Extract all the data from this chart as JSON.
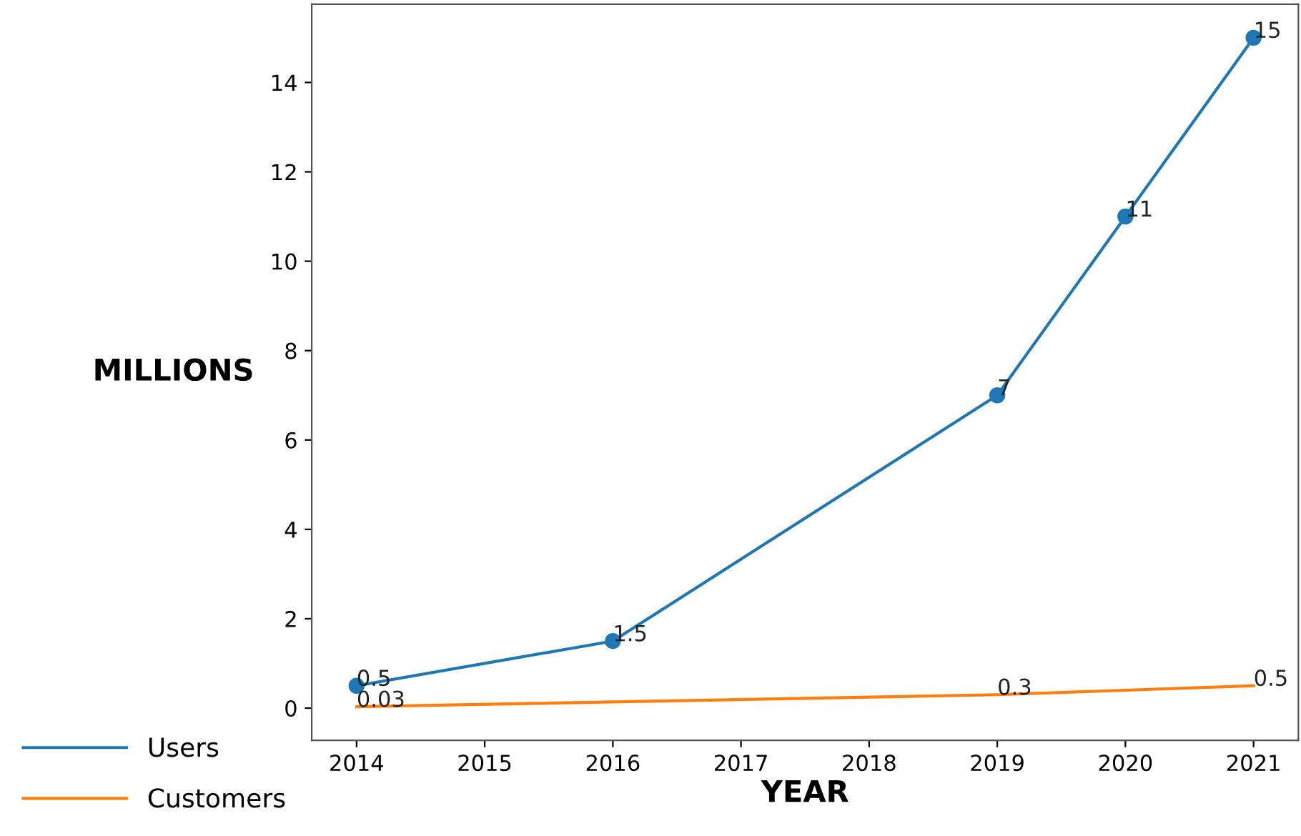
{
  "chart_data": {
    "type": "line",
    "xlabel": "YEAR",
    "ylabel": "MILLIONS",
    "xlim": [
      2013.65,
      2021.35
    ],
    "xticks": [
      2014,
      2015,
      2016,
      2017,
      2018,
      2019,
      2020,
      2021
    ],
    "ylim": [
      -0.72,
      15.75
    ],
    "yticks": [
      0,
      2,
      4,
      6,
      8,
      10,
      12,
      14
    ],
    "grid": false,
    "legend": "bottom left",
    "data_labels": true,
    "series": [
      {
        "name": "Users",
        "color": "#1f77b4",
        "marker": "circle",
        "x": [
          2014,
          2016,
          2019,
          2020,
          2021
        ],
        "values": [
          0.5,
          1.5,
          7,
          11,
          15
        ]
      },
      {
        "name": "Customers",
        "color": "#ff7f0e",
        "marker": "none",
        "x": [
          2014,
          2019,
          2021
        ],
        "values": [
          0.03,
          0.3,
          0.5
        ]
      }
    ]
  }
}
